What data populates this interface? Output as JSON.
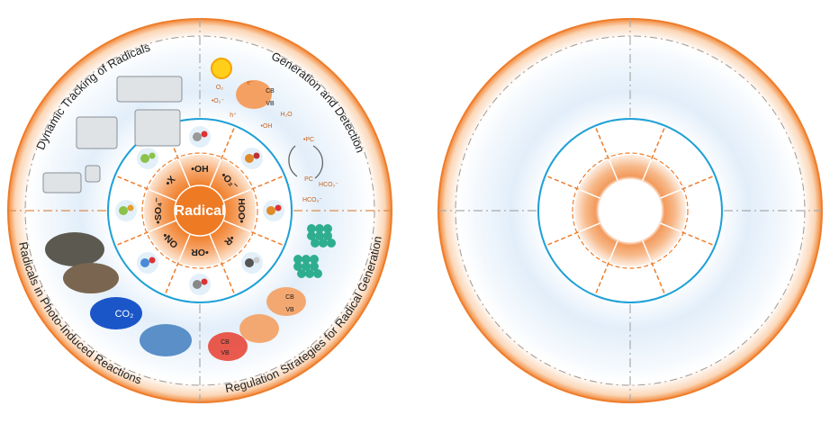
{
  "center_label": "Radical",
  "radicals": [
    "•OH",
    "•O₂⁻",
    "HOO•",
    "•R",
    "•OR",
    "ON•",
    "•SO₄⁻",
    "•X"
  ],
  "sections": [
    "Dynamic Tracking of Radicals",
    "Generation and Detection",
    "Regulation Strategies for Radical Generation",
    "Radicals in Photo-Induced Reactions"
  ],
  "illustration_labels": [
    "O₂",
    "•O₂⁻",
    "e⁻",
    "h⁺",
    "CB",
    "VB",
    "H₂O",
    "•OH",
    "•PC",
    "PC",
    "HCO₂⁻",
    "HCO₃⁻",
    "CO₂",
    "CB",
    "VB",
    "CB",
    "VB"
  ]
}
